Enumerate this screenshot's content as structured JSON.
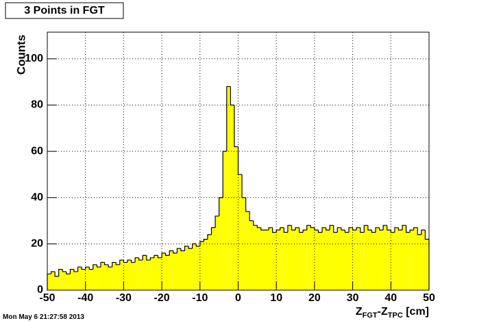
{
  "chart_data": {
    "type": "histogram",
    "title": "3 Points in FGT",
    "y_label": "Counts",
    "x_label_parts": [
      "Z",
      "FGT",
      "-Z",
      "TPC",
      " [cm]"
    ],
    "footer": "Mon May  6 21:27:58 2013",
    "color": "#ffff00",
    "line_color": "#000000",
    "grid": true,
    "xlim": [
      -50,
      50
    ],
    "xticks": [
      -50,
      -40,
      -30,
      -20,
      -10,
      0,
      10,
      20,
      30,
      40,
      50
    ],
    "ylim": [
      0,
      111.5
    ],
    "yticks": [
      0,
      20,
      40,
      60,
      80,
      100
    ],
    "bins": [
      -50,
      -49,
      -48,
      -47,
      -46,
      -45,
      -44,
      -43,
      -42,
      -41,
      -40,
      -39,
      -38,
      -37,
      -36,
      -35,
      -34,
      -33,
      -32,
      -31,
      -30,
      -29,
      -28,
      -27,
      -26,
      -25,
      -24,
      -23,
      -22,
      -21,
      -20,
      -19,
      -18,
      -17,
      -16,
      -15,
      -14,
      -13,
      -12,
      -11,
      -10,
      -9,
      -8,
      -7,
      -6,
      -5,
      -4,
      -3,
      -2,
      -1,
      0,
      1,
      2,
      3,
      4,
      5,
      6,
      7,
      8,
      9,
      10,
      11,
      12,
      13,
      14,
      15,
      16,
      17,
      18,
      19,
      20,
      21,
      22,
      23,
      24,
      25,
      26,
      27,
      28,
      29,
      30,
      31,
      32,
      33,
      34,
      35,
      36,
      37,
      38,
      39,
      40,
      41,
      42,
      43,
      44,
      45,
      46,
      47,
      48,
      49,
      50
    ],
    "values": [
      7,
      8,
      6,
      9,
      8,
      7,
      9,
      8,
      10,
      9,
      10,
      9,
      11,
      10,
      12,
      11,
      10,
      12,
      11,
      13,
      12,
      13,
      12,
      14,
      13,
      15,
      13,
      14,
      15,
      14,
      16,
      15,
      17,
      16,
      18,
      17,
      19,
      18,
      20,
      19,
      21,
      22,
      24,
      27,
      32,
      40,
      60,
      88,
      80,
      62,
      50,
      40,
      34,
      30,
      28,
      27,
      26,
      26,
      27,
      25,
      26,
      27,
      25,
      28,
      26,
      27,
      25,
      26,
      28,
      27,
      26,
      25,
      27,
      26,
      28,
      25,
      27,
      26,
      25,
      27,
      26,
      27,
      25,
      28,
      26,
      25,
      27,
      26,
      28,
      26,
      25,
      27,
      26,
      28,
      25,
      26,
      27,
      24,
      26,
      22
    ]
  }
}
